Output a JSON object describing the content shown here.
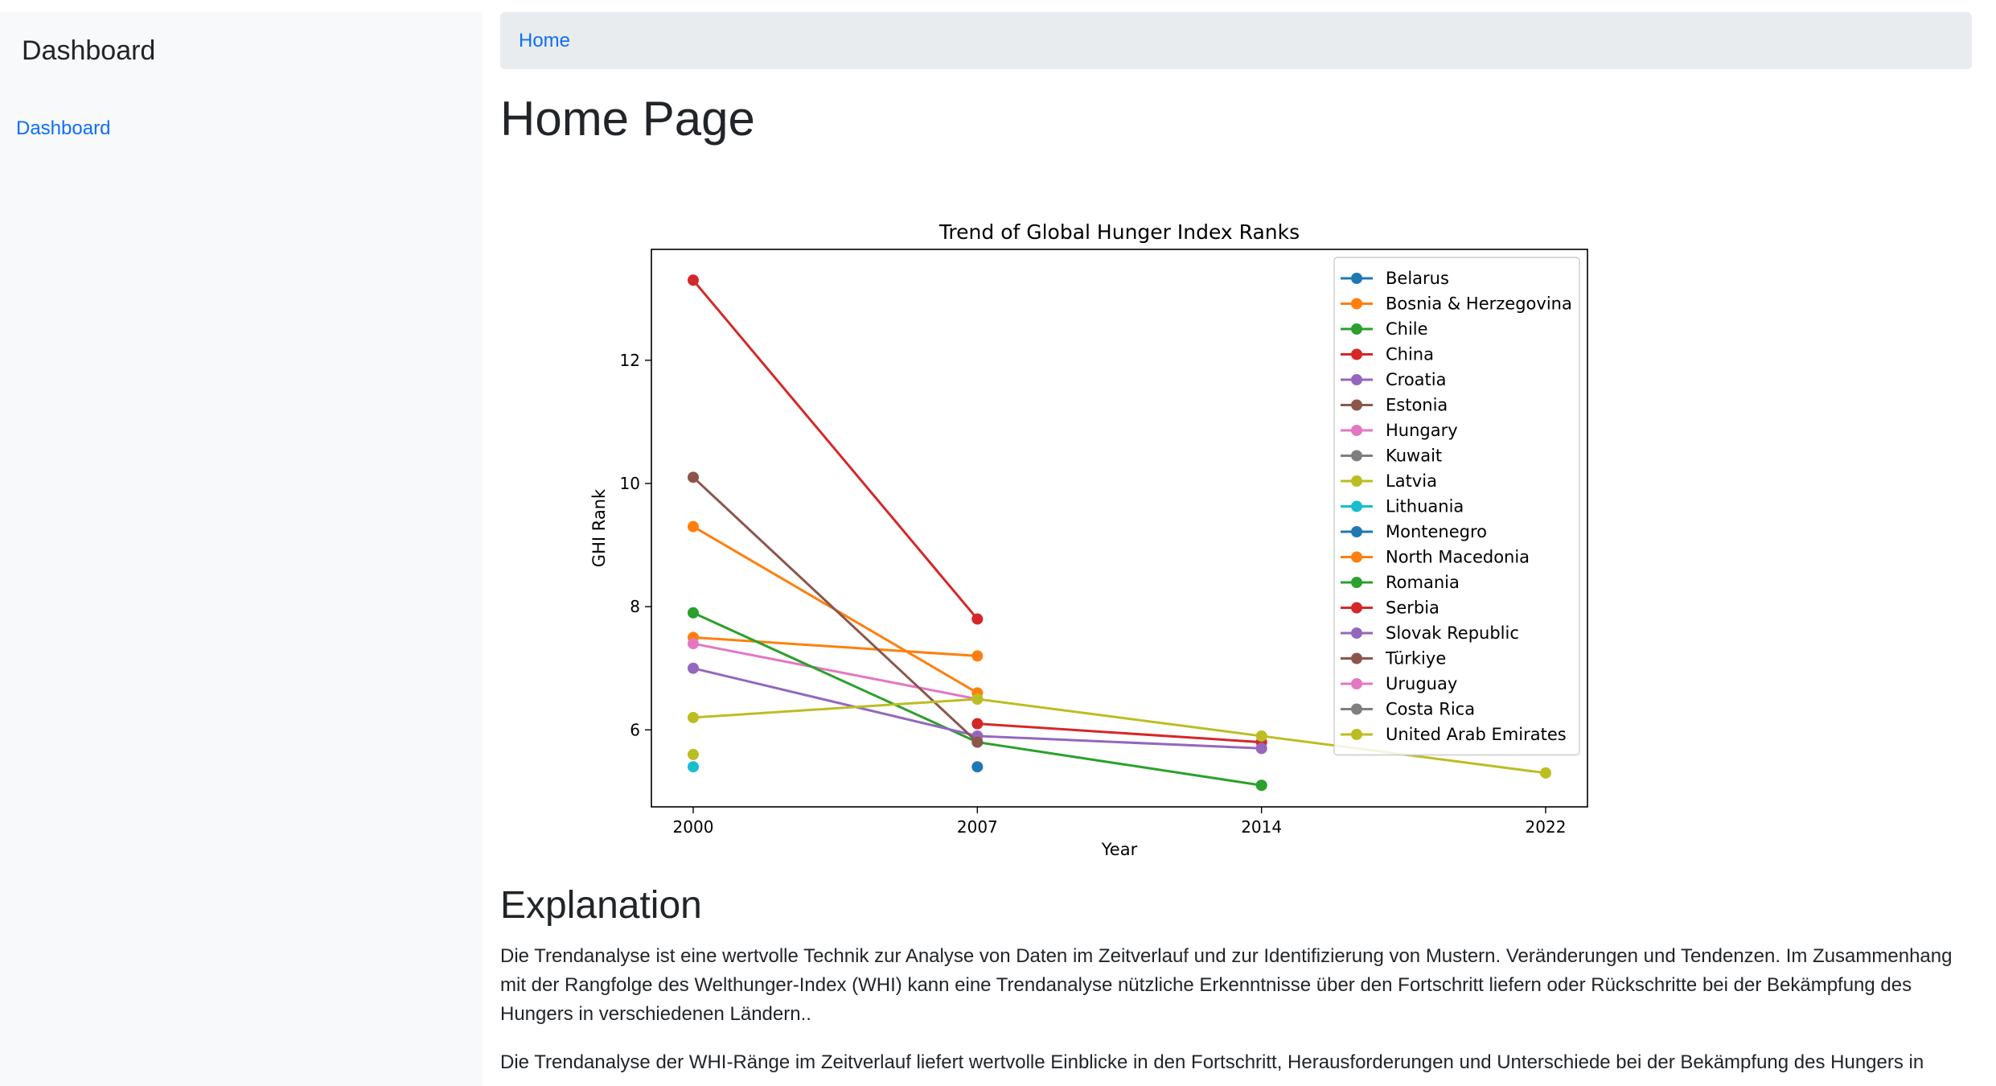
{
  "sidebar": {
    "title": "Dashboard",
    "links": [
      {
        "label": "Dashboard"
      }
    ]
  },
  "breadcrumb": {
    "items": [
      {
        "label": "Home"
      }
    ]
  },
  "main": {
    "title": "Home Page",
    "explanation_heading": "Explanation",
    "paragraphs": [
      "Die Trendanalyse ist eine wertvolle Technik zur Analyse von Daten im Zeitverlauf und zur Identifizierung von Mustern. Veränderungen und Tendenzen. Im Zusammenhang mit der Rangfolge des Welthunger-Index (WHI) kann eine Trendanalyse nützliche Erkenntnisse über den Fortschritt liefern oder Rückschritte bei der Bekämpfung des Hungers in verschiedenen Ländern..",
      "Die Trendanalyse der WHI-Ränge im Zeitverlauf liefert wertvolle Einblicke in den Fortschritt, Herausforderungen und Unterschiede bei der Bekämpfung des Hungers in"
    ]
  },
  "colors": {
    "accent": "#0d6efd",
    "sidebar_bg": "#f8f9fa",
    "breadcrumb_bg": "#e9ecef"
  },
  "chart_data": {
    "type": "line",
    "title": "Trend of Global Hunger Index Ranks",
    "xlabel": "Year",
    "ylabel": "GHI Rank",
    "x_categories": [
      "2000",
      "2007",
      "2014",
      "2022"
    ],
    "y_ticks": [
      6,
      8,
      10,
      12
    ],
    "ylim": [
      4.75,
      13.8
    ],
    "grid": false,
    "legend_position": "top-right",
    "series": [
      {
        "name": "Belarus",
        "color": "#1f77b4",
        "points": [
          [
            "2007",
            5.4
          ]
        ]
      },
      {
        "name": "Bosnia & Herzegovina",
        "color": "#ff7f0e",
        "points": [
          [
            "2000",
            7.5
          ],
          [
            "2007",
            7.2
          ]
        ]
      },
      {
        "name": "Chile",
        "color": "#2ca02c",
        "points": [
          [
            "2014",
            5.1
          ]
        ]
      },
      {
        "name": "China",
        "color": "#d62728",
        "points": [
          [
            "2000",
            13.3
          ],
          [
            "2007",
            7.8
          ]
        ]
      },
      {
        "name": "Croatia",
        "color": "#9467bd",
        "points": [
          [
            "2014",
            5.7
          ]
        ]
      },
      {
        "name": "Estonia",
        "color": "#8c564b",
        "points": []
      },
      {
        "name": "Hungary",
        "color": "#e377c2",
        "points": [
          [
            "2000",
            7.4
          ],
          [
            "2007",
            6.5
          ]
        ]
      },
      {
        "name": "Kuwait",
        "color": "#7f7f7f",
        "points": []
      },
      {
        "name": "Latvia",
        "color": "#bcbd22",
        "points": [
          [
            "2000",
            5.6
          ]
        ]
      },
      {
        "name": "Lithuania",
        "color": "#17becf",
        "points": [
          [
            "2000",
            5.4
          ]
        ]
      },
      {
        "name": "Montenegro",
        "color": "#1f77b4",
        "points": []
      },
      {
        "name": "North Macedonia",
        "color": "#ff7f0e",
        "points": [
          [
            "2000",
            9.3
          ],
          [
            "2007",
            6.6
          ]
        ]
      },
      {
        "name": "Romania",
        "color": "#2ca02c",
        "points": [
          [
            "2000",
            7.9
          ],
          [
            "2007",
            5.8
          ],
          [
            "2014",
            5.1
          ]
        ]
      },
      {
        "name": "Serbia",
        "color": "#d62728",
        "points": [
          [
            "2007",
            6.1
          ],
          [
            "2014",
            5.8
          ]
        ]
      },
      {
        "name": "Slovak Republic",
        "color": "#9467bd",
        "points": [
          [
            "2000",
            7.0
          ],
          [
            "2007",
            5.9
          ],
          [
            "2014",
            5.7
          ]
        ]
      },
      {
        "name": "Türkiye",
        "color": "#8c564b",
        "points": [
          [
            "2000",
            10.1
          ],
          [
            "2007",
            5.8
          ]
        ]
      },
      {
        "name": "Uruguay",
        "color": "#e377c2",
        "points": []
      },
      {
        "name": "Costa Rica",
        "color": "#7f7f7f",
        "points": []
      },
      {
        "name": "United Arab Emirates",
        "color": "#bcbd22",
        "points": [
          [
            "2000",
            6.2
          ],
          [
            "2007",
            6.5
          ],
          [
            "2014",
            5.9
          ],
          [
            "2022",
            5.3
          ]
        ]
      }
    ]
  }
}
